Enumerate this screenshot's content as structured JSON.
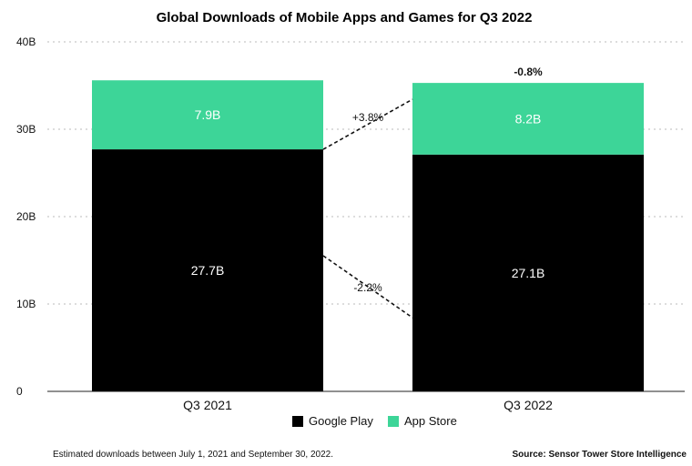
{
  "chart_data": {
    "type": "bar",
    "stacked": true,
    "title": "Global Downloads of Mobile Apps and Games for Q3 2022",
    "categories": [
      "Q3 2021",
      "Q3 2022"
    ],
    "series": [
      {
        "name": "Google Play",
        "values": [
          27.7,
          27.1
        ],
        "labels": [
          "27.7B",
          "27.1B"
        ],
        "color": "#000000"
      },
      {
        "name": "App Store",
        "values": [
          7.9,
          8.2
        ],
        "labels": [
          "7.9B",
          "8.2B"
        ],
        "color": "#3dd598"
      }
    ],
    "y_ticks": [
      0,
      10,
      20,
      30,
      40
    ],
    "y_tick_labels": [
      "0",
      "10B",
      "20B",
      "30B",
      "40B"
    ],
    "ylim": [
      0,
      40
    ],
    "grid": "horizontal dotted",
    "legend_position": "bottom-center",
    "changes": {
      "total": "-0.8%",
      "app_store": "+3.8%",
      "google_play": "-2.2%"
    },
    "footnote": "Estimated downloads between July 1, 2021 and September 30, 2022.",
    "source": "Source: Sensor Tower Store Intelligence"
  }
}
